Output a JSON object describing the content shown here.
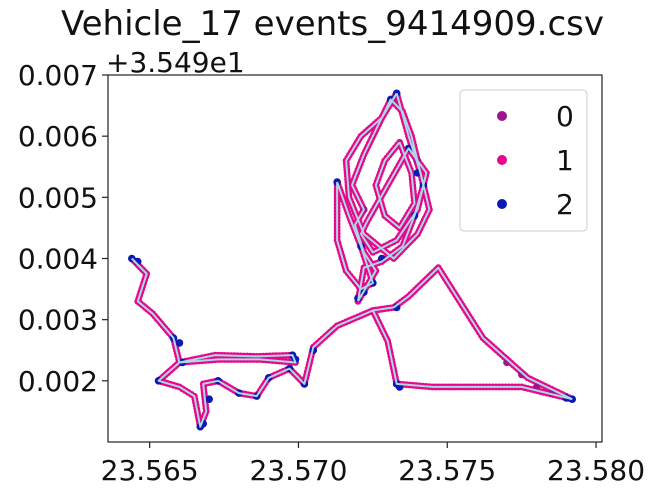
{
  "chart_data": {
    "type": "scatter",
    "title": "Vehicle_17 events_9414909.csv",
    "y_offset_label": "+3.549e1",
    "xlim": [
      23.5636,
      23.5802
    ],
    "ylim": [
      0.001,
      0.007
    ],
    "x_ticks": [
      23.565,
      23.57,
      23.575,
      23.58
    ],
    "x_tick_labels": [
      "23.565",
      "23.570",
      "23.575",
      "23.580"
    ],
    "y_ticks": [
      0.002,
      0.003,
      0.004,
      0.005,
      0.006,
      0.007
    ],
    "y_tick_labels": [
      "0.002",
      "0.003",
      "0.004",
      "0.005",
      "0.006",
      "0.007"
    ],
    "grid": false,
    "legend_position": "top-right",
    "track_color": "#add8e6",
    "series": [
      {
        "name": "0",
        "color": "#a0128f"
      },
      {
        "name": "1",
        "color": "#e8068a"
      },
      {
        "name": "2",
        "color": "#0a18b4"
      }
    ],
    "routes": [
      [
        [
          23.5644,
          0.004
        ],
        [
          23.5649,
          0.00375
        ],
        [
          23.5646,
          0.0033
        ],
        [
          23.5651,
          0.0031
        ],
        [
          23.5658,
          0.0027
        ],
        [
          23.566,
          0.0023
        ],
        [
          23.5653,
          0.002
        ],
        [
          23.566,
          0.0019
        ],
        [
          23.5665,
          0.00175
        ],
        [
          23.5667,
          0.00125
        ],
        [
          23.5669,
          0.0015
        ],
        [
          23.5668,
          0.00195
        ],
        [
          23.5673,
          0.002
        ],
        [
          23.568,
          0.0018
        ],
        [
          23.5686,
          0.00175
        ],
        [
          23.569,
          0.00205
        ],
        [
          23.5697,
          0.0022
        ],
        [
          23.5702,
          0.00195
        ],
        [
          23.5705,
          0.00255
        ],
        [
          23.5713,
          0.0029
        ],
        [
          23.5725,
          0.00315
        ],
        [
          23.5732,
          0.0032
        ],
        [
          23.5737,
          0.00338
        ],
        [
          23.5747,
          0.00385
        ],
        [
          23.5762,
          0.0027
        ],
        [
          23.5777,
          0.00205
        ],
        [
          23.5792,
          0.0017
        ]
      ],
      [
        [
          23.566,
          0.0023
        ],
        [
          23.5672,
          0.00242
        ],
        [
          23.5686,
          0.0024
        ],
        [
          23.5698,
          0.00242
        ],
        [
          23.5699,
          0.0023
        ],
        [
          23.5687,
          0.00235
        ],
        [
          23.5673,
          0.00235
        ],
        [
          23.566,
          0.0023
        ]
      ],
      [
        [
          23.5725,
          0.00315
        ],
        [
          23.573,
          0.00265
        ],
        [
          23.5733,
          0.00195
        ],
        [
          23.5745,
          0.0019
        ],
        [
          23.576,
          0.0019
        ],
        [
          23.5775,
          0.0019
        ],
        [
          23.5792,
          0.0017
        ]
      ],
      [
        [
          23.572,
          0.0033
        ],
        [
          23.5726,
          0.0038
        ],
        [
          23.5722,
          0.0041
        ],
        [
          23.5719,
          0.00455
        ],
        [
          23.5722,
          0.0048
        ],
        [
          23.5718,
          0.0052
        ],
        [
          23.5722,
          0.0057
        ],
        [
          23.5726,
          0.0061
        ],
        [
          23.5731,
          0.0066
        ],
        [
          23.5735,
          0.0064
        ],
        [
          23.5738,
          0.006
        ],
        [
          23.574,
          0.0056
        ],
        [
          23.5742,
          0.0052
        ],
        [
          23.5739,
          0.0047
        ],
        [
          23.5735,
          0.0042
        ],
        [
          23.5728,
          0.00395
        ],
        [
          23.5722,
          0.00385
        ],
        [
          23.572,
          0.0033
        ]
      ],
      [
        [
          23.5723,
          0.0046
        ],
        [
          23.573,
          0.0052
        ],
        [
          23.5737,
          0.0058
        ],
        [
          23.5743,
          0.0054
        ],
        [
          23.574,
          0.0048
        ],
        [
          23.5733,
          0.0043
        ],
        [
          23.5725,
          0.0041
        ],
        [
          23.5721,
          0.0044
        ],
        [
          23.5723,
          0.0046
        ]
      ],
      [
        [
          23.5733,
          0.0067
        ],
        [
          23.5728,
          0.0063
        ],
        [
          23.5721,
          0.006
        ],
        [
          23.5716,
          0.0056
        ],
        [
          23.5717,
          0.005
        ],
        [
          23.5722,
          0.0044
        ],
        [
          23.5732,
          0.004
        ],
        [
          23.574,
          0.0044
        ],
        [
          23.5744,
          0.0048
        ],
        [
          23.5741,
          0.0054
        ],
        [
          23.5737,
          0.006
        ],
        [
          23.5733,
          0.0067
        ]
      ],
      [
        [
          23.5713,
          0.00525
        ],
        [
          23.5717,
          0.0047
        ],
        [
          23.5721,
          0.0042
        ],
        [
          23.5725,
          0.0036
        ],
        [
          23.5721,
          0.0035
        ],
        [
          23.5716,
          0.0038
        ],
        [
          23.5713,
          0.0043
        ],
        [
          23.5713,
          0.00525
        ]
      ],
      [
        [
          23.5734,
          0.0059
        ],
        [
          23.5729,
          0.0056
        ],
        [
          23.5726,
          0.0052
        ],
        [
          23.5729,
          0.0047
        ],
        [
          23.5734,
          0.0045
        ],
        [
          23.5739,
          0.0049
        ],
        [
          23.5738,
          0.0054
        ],
        [
          23.5734,
          0.0059
        ]
      ]
    ],
    "blue_points": [
      [
        23.5644,
        0.004
      ],
      [
        23.5646,
        0.00395
      ],
      [
        23.5658,
        0.0027
      ],
      [
        23.566,
        0.00262
      ],
      [
        23.5653,
        0.002
      ],
      [
        23.5661,
        0.0023
      ],
      [
        23.5667,
        0.00125
      ],
      [
        23.5668,
        0.0013
      ],
      [
        23.567,
        0.0017
      ],
      [
        23.5673,
        0.002
      ],
      [
        23.568,
        0.0018
      ],
      [
        23.5686,
        0.00175
      ],
      [
        23.569,
        0.00205
      ],
      [
        23.5697,
        0.0022
      ],
      [
        23.5702,
        0.00195
      ],
      [
        23.5705,
        0.0025
      ],
      [
        23.5699,
        0.00235
      ],
      [
        23.5698,
        0.00242
      ],
      [
        23.5713,
        0.00525
      ],
      [
        23.572,
        0.00335
      ],
      [
        23.5722,
        0.00345
      ],
      [
        23.5725,
        0.0036
      ],
      [
        23.5731,
        0.0066
      ],
      [
        23.5733,
        0.0067
      ],
      [
        23.5733,
        0.00195
      ],
      [
        23.5734,
        0.0019
      ],
      [
        23.5737,
        0.0058
      ],
      [
        23.574,
        0.0054
      ],
      [
        23.5742,
        0.0052
      ],
      [
        23.5728,
        0.004
      ],
      [
        23.5721,
        0.0042
      ],
      [
        23.5792,
        0.0017
      ],
      [
        23.579,
        0.00172
      ],
      [
        23.5733,
        0.0032
      ],
      [
        23.5739,
        0.0047
      ]
    ],
    "purple_points": [
      [
        23.577,
        0.0023
      ],
      [
        23.5775,
        0.0021
      ],
      [
        23.5785,
        0.0018
      ],
      [
        23.578,
        0.0019
      ],
      [
        23.5722,
        0.0048
      ],
      [
        23.574,
        0.0056
      ]
    ]
  }
}
